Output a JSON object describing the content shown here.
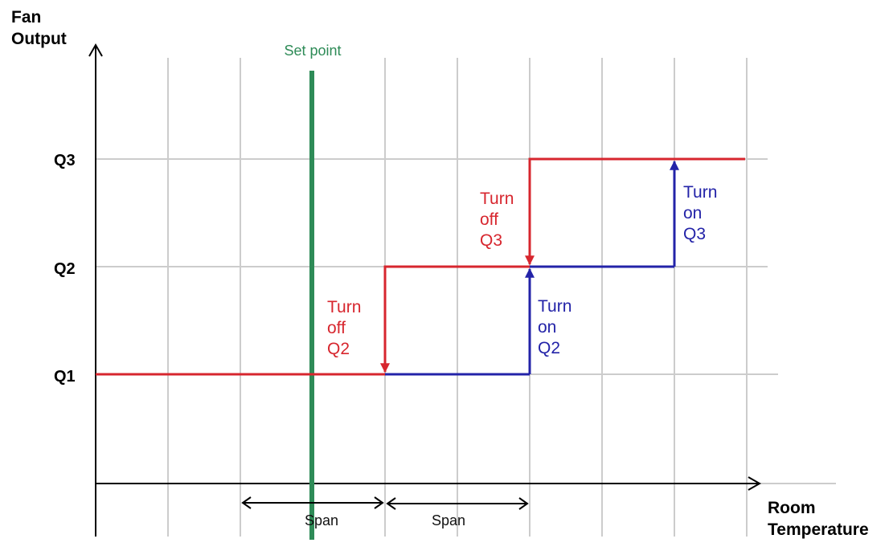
{
  "axes": {
    "y_title_line1": "Fan",
    "y_title_line2": "Output",
    "x_title_line1": "Room",
    "x_title_line2": "Temperature"
  },
  "levels": [
    "Q1",
    "Q2",
    "Q3"
  ],
  "setpoint": {
    "label": "Set point",
    "color": "#2e8b57"
  },
  "spans": [
    "Span",
    "Span"
  ],
  "annotations": {
    "turn_off_q2": [
      "Turn",
      "off",
      "Q2"
    ],
    "turn_off_q3": [
      "Turn",
      "off",
      "Q3"
    ],
    "turn_on_q2": [
      "Turn",
      "on",
      "Q2"
    ],
    "turn_on_q3": [
      "Turn",
      "on",
      "Q3"
    ]
  },
  "colors": {
    "off_path": "#d7262e",
    "on_path": "#2323a8",
    "grid": "#cccccc",
    "axis": "#000000"
  }
}
